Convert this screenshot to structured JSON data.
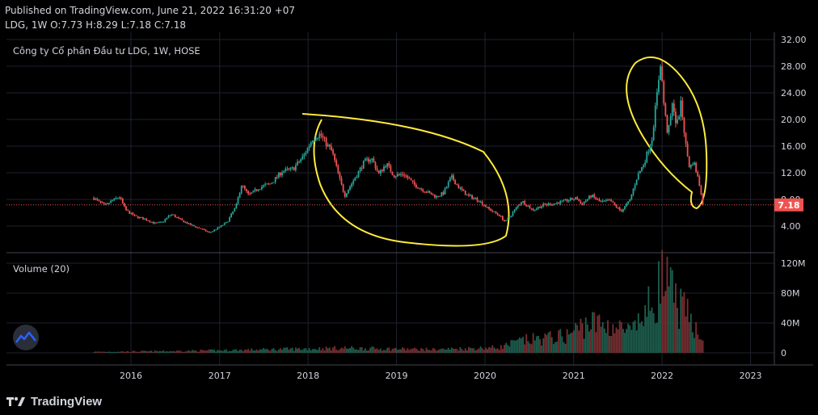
{
  "header": {
    "published": "Published on TradingView.com, June 21, 2022 16:31:20 +07",
    "ohlc": "LDG, 1W O:7.73 H:8.29 L:7.18 C:7.18"
  },
  "chart_data": [
    {
      "type": "candlestick",
      "title": "Công ty Cổ phần Đầu tư LDG, 1W, HOSE",
      "x_ticks": [
        "2016",
        "2017",
        "2018",
        "2019",
        "2020",
        "2021",
        "2022",
        "2023"
      ],
      "y_ticks": [
        "32.00",
        "28.00",
        "24.00",
        "20.00",
        "16.00",
        "12.00",
        "8.00",
        "4.00"
      ],
      "ylim": [
        0,
        32
      ],
      "last_price": 7.18,
      "last_price_label": "7.18",
      "colors": {
        "up": "#26a69a",
        "down": "#ef5350",
        "last_line": "#ef5350",
        "annotation": "#ffeb3b"
      },
      "price_path": [
        [
          "2015-08-01",
          8.2
        ],
        [
          "2015-09-15",
          7.0
        ],
        [
          "2015-10-15",
          7.8
        ],
        [
          "2015-11-15",
          8.4
        ],
        [
          "2015-12-10",
          6.4
        ],
        [
          "2016-01-15",
          5.5
        ],
        [
          "2016-03-01",
          5.0
        ],
        [
          "2016-04-10",
          4.4
        ],
        [
          "2016-05-10",
          4.6
        ],
        [
          "2016-06-15",
          5.8
        ],
        [
          "2016-07-20",
          5.0
        ],
        [
          "2016-09-01",
          4.2
        ],
        [
          "2016-10-15",
          3.6
        ],
        [
          "2016-11-20",
          3.0
        ],
        [
          "2016-12-20",
          3.6
        ],
        [
          "2017-02-01",
          4.6
        ],
        [
          "2017-03-10",
          7.0
        ],
        [
          "2017-04-01",
          10.2
        ],
        [
          "2017-05-01",
          8.6
        ],
        [
          "2017-06-15",
          9.8
        ],
        [
          "2017-08-01",
          10.4
        ],
        [
          "2017-09-15",
          12.2
        ],
        [
          "2017-11-01",
          12.6
        ],
        [
          "2017-12-15",
          14.6
        ],
        [
          "2018-01-20",
          17.2
        ],
        [
          "2018-02-20",
          17.8
        ],
        [
          "2018-03-20",
          16.2
        ],
        [
          "2018-04-10",
          15.2
        ],
        [
          "2018-05-10",
          11.2
        ],
        [
          "2018-06-01",
          8.6
        ],
        [
          "2018-06-20",
          9.8
        ],
        [
          "2018-07-20",
          11.6
        ],
        [
          "2018-08-20",
          13.6
        ],
        [
          "2018-09-20",
          14.2
        ],
        [
          "2018-10-20",
          11.8
        ],
        [
          "2018-11-20",
          13.4
        ],
        [
          "2018-12-20",
          11.6
        ],
        [
          "2019-02-01",
          11.8
        ],
        [
          "2019-03-15",
          10.2
        ],
        [
          "2019-05-01",
          9.2
        ],
        [
          "2019-06-15",
          8.4
        ],
        [
          "2019-07-15",
          9.0
        ],
        [
          "2019-08-15",
          11.4
        ],
        [
          "2019-09-15",
          9.8
        ],
        [
          "2019-10-20",
          8.6
        ],
        [
          "2019-12-01",
          8.0
        ],
        [
          "2020-01-15",
          6.6
        ],
        [
          "2020-03-01",
          5.6
        ],
        [
          "2020-03-25",
          4.6
        ],
        [
          "2020-04-20",
          5.8
        ],
        [
          "2020-06-01",
          7.8
        ],
        [
          "2020-07-15",
          6.4
        ],
        [
          "2020-09-01",
          7.2
        ],
        [
          "2020-10-15",
          7.4
        ],
        [
          "2020-12-01",
          7.8
        ],
        [
          "2021-01-15",
          8.2
        ],
        [
          "2021-02-01",
          7.2
        ],
        [
          "2021-03-15",
          8.6
        ],
        [
          "2021-04-20",
          7.6
        ],
        [
          "2021-06-01",
          7.8
        ],
        [
          "2021-07-15",
          6.2
        ],
        [
          "2021-08-20",
          7.8
        ],
        [
          "2021-09-20",
          11.4
        ],
        [
          "2021-10-20",
          13.6
        ],
        [
          "2021-11-20",
          17.2
        ],
        [
          "2021-12-10",
          23.4
        ],
        [
          "2021-12-25",
          28.6
        ],
        [
          "2022-01-10",
          21.6
        ],
        [
          "2022-01-25",
          17.6
        ],
        [
          "2022-02-15",
          22.8
        ],
        [
          "2022-03-01",
          18.8
        ],
        [
          "2022-03-20",
          22.4
        ],
        [
          "2022-04-10",
          15.8
        ],
        [
          "2022-04-25",
          12.6
        ],
        [
          "2022-05-10",
          13.8
        ],
        [
          "2022-05-25",
          11.8
        ],
        [
          "2022-06-10",
          9.2
        ],
        [
          "2022-06-21",
          7.18
        ]
      ]
    },
    {
      "type": "bar",
      "title": "Volume (20)",
      "y_ticks": [
        "120M",
        "80M",
        "40M",
        "0"
      ],
      "ylim": [
        0,
        120
      ],
      "unit": "M",
      "volume_path": [
        [
          "2015-08-01",
          1.5
        ],
        [
          "2016-06-01",
          2.5
        ],
        [
          "2017-03-01",
          4
        ],
        [
          "2017-12-01",
          6
        ],
        [
          "2018-06-01",
          7
        ],
        [
          "2019-06-01",
          5
        ],
        [
          "2020-03-01",
          8
        ],
        [
          "2020-06-01",
          18
        ],
        [
          "2020-12-01",
          25
        ],
        [
          "2021-03-01",
          45
        ],
        [
          "2021-06-01",
          40
        ],
        [
          "2021-09-01",
          30
        ],
        [
          "2021-12-01",
          80
        ],
        [
          "2022-01-01",
          110
        ],
        [
          "2022-03-01",
          75
        ],
        [
          "2022-06-21",
          25
        ]
      ]
    }
  ],
  "footer": {
    "brand": "TradingView"
  }
}
